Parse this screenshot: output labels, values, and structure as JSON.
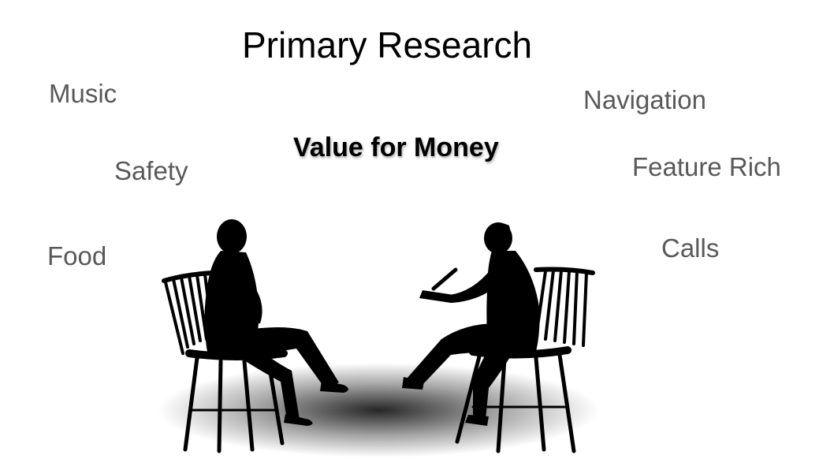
{
  "slide": {
    "title": "Primary Research",
    "center_keyword": "Value for Money",
    "keywords": {
      "music": "Music",
      "navigation": "Navigation",
      "safety": "Safety",
      "feature_rich": "Feature Rich",
      "food": "Food",
      "calls": "Calls"
    }
  },
  "colors": {
    "title": "#000000",
    "keyword": "#595959",
    "silhouette": "#000000"
  },
  "icons": {
    "illustration": "interview-silhouette-icon"
  }
}
